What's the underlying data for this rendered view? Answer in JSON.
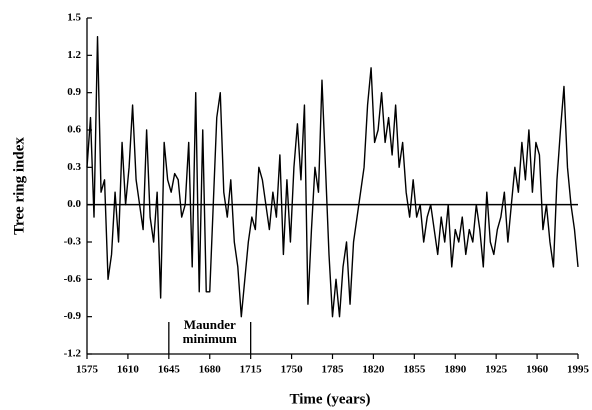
{
  "chart_data": {
    "type": "line",
    "xlabel": "Time (years)",
    "ylabel": "Tree ring index",
    "x": [
      1575,
      1578,
      1581,
      1584,
      1587,
      1590,
      1593,
      1596,
      1599,
      1602,
      1605,
      1608,
      1611,
      1614,
      1617,
      1620,
      1623,
      1626,
      1629,
      1632,
      1635,
      1638,
      1641,
      1644,
      1647,
      1650,
      1653,
      1656,
      1659,
      1662,
      1665,
      1668,
      1671,
      1674,
      1677,
      1680,
      1683,
      1686,
      1689,
      1692,
      1695,
      1698,
      1701,
      1704,
      1707,
      1710,
      1713,
      1716,
      1719,
      1722,
      1725,
      1728,
      1731,
      1734,
      1737,
      1740,
      1743,
      1746,
      1749,
      1752,
      1755,
      1758,
      1761,
      1764,
      1767,
      1770,
      1773,
      1776,
      1779,
      1782,
      1785,
      1788,
      1791,
      1794,
      1797,
      1800,
      1803,
      1806,
      1809,
      1812,
      1815,
      1818,
      1821,
      1824,
      1827,
      1830,
      1833,
      1836,
      1839,
      1842,
      1845,
      1848,
      1851,
      1854,
      1857,
      1860,
      1863,
      1866,
      1869,
      1872,
      1875,
      1878,
      1881,
      1884,
      1887,
      1890,
      1893,
      1896,
      1899,
      1902,
      1905,
      1908,
      1911,
      1914,
      1917,
      1920,
      1923,
      1926,
      1929,
      1932,
      1935,
      1938,
      1941,
      1944,
      1947,
      1950,
      1953,
      1956,
      1959,
      1962,
      1965,
      1968,
      1971,
      1974,
      1977,
      1980,
      1983,
      1986,
      1989,
      1992,
      1995
    ],
    "values": [
      0.3,
      0.7,
      -0.1,
      1.35,
      0.1,
      0.2,
      -0.6,
      -0.4,
      0.1,
      -0.3,
      0.5,
      0.0,
      0.3,
      0.8,
      0.2,
      0.0,
      -0.2,
      0.6,
      -0.1,
      -0.3,
      0.1,
      -0.75,
      0.5,
      0.2,
      0.1,
      0.25,
      0.2,
      -0.1,
      0.0,
      0.5,
      -0.5,
      0.9,
      -0.7,
      0.6,
      -0.7,
      -0.7,
      0.0,
      0.7,
      0.9,
      0.1,
      -0.1,
      0.2,
      -0.3,
      -0.5,
      -0.9,
      -0.6,
      -0.3,
      -0.1,
      -0.2,
      0.3,
      0.2,
      0.0,
      -0.2,
      0.1,
      -0.1,
      0.4,
      -0.4,
      0.2,
      -0.3,
      0.3,
      0.65,
      0.2,
      0.8,
      -0.8,
      -0.2,
      0.3,
      0.1,
      1.0,
      0.3,
      -0.4,
      -0.9,
      -0.6,
      -0.9,
      -0.5,
      -0.3,
      -0.8,
      -0.3,
      -0.1,
      0.1,
      0.3,
      0.8,
      1.1,
      0.5,
      0.6,
      0.9,
      0.5,
      0.7,
      0.4,
      0.8,
      0.3,
      0.5,
      0.1,
      -0.1,
      0.2,
      -0.1,
      0.0,
      -0.3,
      -0.1,
      0.0,
      -0.2,
      -0.4,
      -0.1,
      -0.3,
      0.0,
      -0.5,
      -0.2,
      -0.3,
      -0.1,
      -0.4,
      -0.2,
      -0.3,
      0.0,
      -0.2,
      -0.5,
      0.1,
      -0.3,
      -0.4,
      -0.2,
      -0.1,
      0.1,
      -0.3,
      0.0,
      0.3,
      0.1,
      0.5,
      0.2,
      0.6,
      0.1,
      0.5,
      0.4,
      -0.2,
      0.0,
      -0.3,
      -0.5,
      0.2,
      0.6,
      0.95,
      0.3,
      0.0,
      -0.2,
      -0.5
    ],
    "color": "#000000",
    "xlim": [
      1575,
      1995
    ],
    "xticks": [
      1575,
      1610,
      1645,
      1680,
      1715,
      1750,
      1785,
      1820,
      1855,
      1890,
      1925,
      1960,
      1995
    ],
    "ylim": [
      -1.2,
      1.5
    ],
    "yticks": [
      1.5,
      1.2,
      0.9,
      0.6,
      0.3,
      {
        "value": 0,
        "label": "0.0"
      },
      -0.3,
      -0.6,
      -0.9,
      -1.2
    ],
    "annotation": {
      "lines": [
        "Maunder",
        "minimum"
      ],
      "xrange": [
        1645,
        1715
      ]
    }
  }
}
